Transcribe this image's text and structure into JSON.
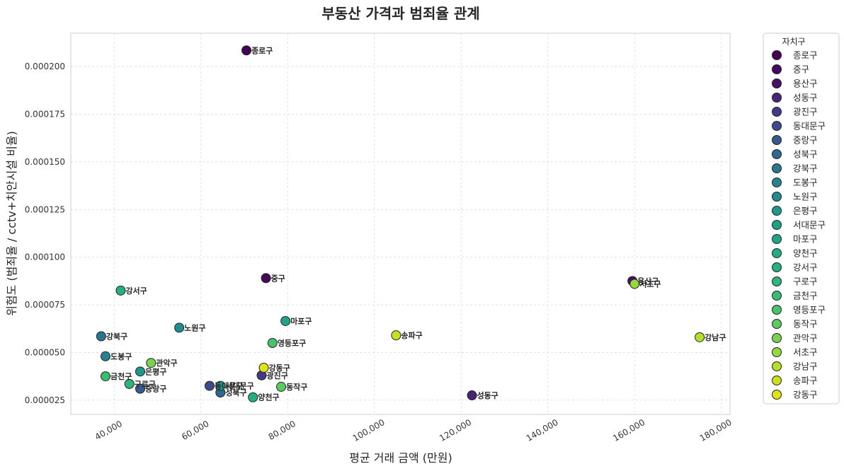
{
  "chart_data": {
    "type": "scatter",
    "title": "부동산 가격과 범죄율 관계",
    "xlabel": "평균 거래 금액 (만원)",
    "ylabel": "위험도 (범죄율 / cctv+치안시설 비율)",
    "xlim": [
      30000,
      182000
    ],
    "ylim": [
      1.75e-05,
      0.0002175
    ],
    "xticks": [
      40000,
      60000,
      80000,
      100000,
      120000,
      140000,
      160000,
      180000
    ],
    "xtick_labels": [
      "40,000",
      "60,000",
      "80,000",
      "100,000",
      "120,000",
      "140,000",
      "160,000",
      "180,000"
    ],
    "yticks": [
      2.5e-05,
      5e-05,
      7.5e-05,
      0.0001,
      0.000125,
      0.00015,
      0.000175,
      0.0002
    ],
    "ytick_labels": [
      "0.000025",
      "0.000050",
      "0.000075",
      "0.000100",
      "0.000125",
      "0.000150",
      "0.000175",
      "0.000200"
    ],
    "grid": true,
    "legend_title": "자치구",
    "legend_position": "outside-right",
    "colormap": "viridis",
    "points": [
      {
        "name": "종로구",
        "x": 70500,
        "y": 0.0002085,
        "color": "#440154"
      },
      {
        "name": "중구",
        "x": 75000,
        "y": 8.9e-05,
        "color": "#46085c"
      },
      {
        "name": "용산구",
        "x": 159500,
        "y": 8.75e-05,
        "color": "#471063"
      },
      {
        "name": "성동구",
        "x": 122500,
        "y": 2.75e-05,
        "color": "#482475"
      },
      {
        "name": "광진구",
        "x": 74000,
        "y": 3.8e-05,
        "color": "#443a83"
      },
      {
        "name": "동대문구",
        "x": 62000,
        "y": 3.25e-05,
        "color": "#3e4a89"
      },
      {
        "name": "중랑구",
        "x": 46000,
        "y": 3.1e-05,
        "color": "#375a8c"
      },
      {
        "name": "성북구",
        "x": 64500,
        "y": 2.9e-05,
        "color": "#31688e"
      },
      {
        "name": "강북구",
        "x": 37000,
        "y": 5.85e-05,
        "color": "#2b758e"
      },
      {
        "name": "도봉구",
        "x": 38000,
        "y": 4.8e-05,
        "color": "#26828e"
      },
      {
        "name": "노원구",
        "x": 55000,
        "y": 6.3e-05,
        "color": "#228b8d"
      },
      {
        "name": "은평구",
        "x": 46000,
        "y": 4e-05,
        "color": "#1f988b"
      },
      {
        "name": "서대문구",
        "x": 64500,
        "y": 3.25e-05,
        "color": "#1fa188"
      },
      {
        "name": "마포구",
        "x": 79500,
        "y": 6.65e-05,
        "color": "#20a386"
      },
      {
        "name": "양천구",
        "x": 72000,
        "y": 2.65e-05,
        "color": "#26ad81"
      },
      {
        "name": "강서구",
        "x": 41500,
        "y": 8.25e-05,
        "color": "#28ae80"
      },
      {
        "name": "구로구",
        "x": 43500,
        "y": 3.35e-05,
        "color": "#2fb47c"
      },
      {
        "name": "금천구",
        "x": 38000,
        "y": 3.75e-05,
        "color": "#3bbb75"
      },
      {
        "name": "영등포구",
        "x": 76500,
        "y": 5.5e-05,
        "color": "#4ac16d"
      },
      {
        "name": "동작구",
        "x": 78500,
        "y": 3.2e-05,
        "color": "#5ec962"
      },
      {
        "name": "관악구",
        "x": 48500,
        "y": 4.45e-05,
        "color": "#7ad151"
      },
      {
        "name": "서초구",
        "x": 160000,
        "y": 8.6e-05,
        "color": "#95d840"
      },
      {
        "name": "강남구",
        "x": 175000,
        "y": 5.8e-05,
        "color": "#b5de2b"
      },
      {
        "name": "송파구",
        "x": 105000,
        "y": 5.9e-05,
        "color": "#c8e020"
      },
      {
        "name": "강동구",
        "x": 74500,
        "y": 4.2e-05,
        "color": "#dde318"
      }
    ]
  }
}
